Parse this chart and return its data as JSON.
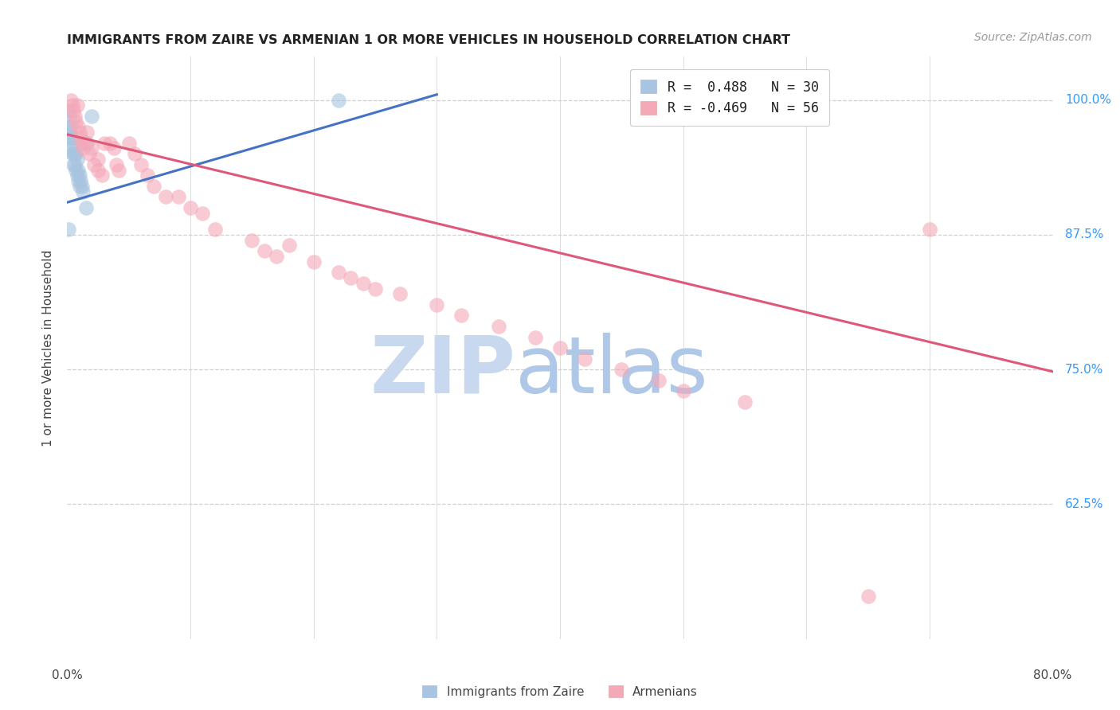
{
  "title": "IMMIGRANTS FROM ZAIRE VS ARMENIAN 1 OR MORE VEHICLES IN HOUSEHOLD CORRELATION CHART",
  "source": "Source: ZipAtlas.com",
  "ylabel": "1 or more Vehicles in Household",
  "ytick_labels": [
    "100.0%",
    "87.5%",
    "75.0%",
    "62.5%"
  ],
  "ytick_values": [
    1.0,
    0.875,
    0.75,
    0.625
  ],
  "legend_zaire_label": "Immigrants from Zaire",
  "legend_armenian_label": "Armenians",
  "legend_r_zaire": "R =  0.488   N = 30",
  "legend_r_armenian": "R = -0.469   N = 56",
  "zaire_color": "#a8c4e0",
  "armenian_color": "#f4a8b8",
  "zaire_line_color": "#4472c4",
  "armenian_line_color": "#e05878",
  "background_color": "#ffffff",
  "grid_color": "#d0d0d0",
  "title_color": "#222222",
  "source_color": "#999999",
  "axis_label_color": "#444444",
  "ytick_color": "#3399ff",
  "xtick_color": "#444444",
  "xmin": 0.0,
  "xmax": 0.8,
  "ymin": 0.5,
  "ymax": 1.04,
  "zaire_x": [
    0.001,
    0.001,
    0.002,
    0.002,
    0.003,
    0.003,
    0.003,
    0.004,
    0.004,
    0.005,
    0.005,
    0.005,
    0.006,
    0.006,
    0.007,
    0.007,
    0.008,
    0.008,
    0.009,
    0.009,
    0.01,
    0.01,
    0.011,
    0.012,
    0.013,
    0.015,
    0.016,
    0.02,
    0.22,
    0.001
  ],
  "zaire_y": [
    0.975,
    0.99,
    0.985,
    0.97,
    0.975,
    0.965,
    0.955,
    0.965,
    0.95,
    0.96,
    0.95,
    0.94,
    0.95,
    0.94,
    0.95,
    0.935,
    0.945,
    0.93,
    0.935,
    0.925,
    0.93,
    0.92,
    0.925,
    0.92,
    0.915,
    0.9,
    0.96,
    0.985,
    1.0,
    0.88
  ],
  "armenian_x": [
    0.003,
    0.004,
    0.005,
    0.006,
    0.007,
    0.008,
    0.009,
    0.01,
    0.011,
    0.012,
    0.013,
    0.015,
    0.016,
    0.018,
    0.02,
    0.022,
    0.025,
    0.025,
    0.028,
    0.03,
    0.035,
    0.038,
    0.04,
    0.042,
    0.05,
    0.055,
    0.06,
    0.065,
    0.07,
    0.08,
    0.09,
    0.1,
    0.11,
    0.12,
    0.15,
    0.16,
    0.17,
    0.18,
    0.2,
    0.22,
    0.23,
    0.24,
    0.25,
    0.27,
    0.3,
    0.32,
    0.35,
    0.38,
    0.4,
    0.42,
    0.45,
    0.48,
    0.5,
    0.55,
    0.65,
    0.7
  ],
  "armenian_y": [
    1.0,
    0.995,
    0.99,
    0.985,
    0.98,
    0.995,
    0.975,
    0.97,
    0.965,
    0.96,
    0.955,
    0.96,
    0.97,
    0.95,
    0.955,
    0.94,
    0.945,
    0.935,
    0.93,
    0.96,
    0.96,
    0.955,
    0.94,
    0.935,
    0.96,
    0.95,
    0.94,
    0.93,
    0.92,
    0.91,
    0.91,
    0.9,
    0.895,
    0.88,
    0.87,
    0.86,
    0.855,
    0.865,
    0.85,
    0.84,
    0.835,
    0.83,
    0.825,
    0.82,
    0.81,
    0.8,
    0.79,
    0.78,
    0.77,
    0.76,
    0.75,
    0.74,
    0.73,
    0.72,
    0.54,
    0.88
  ],
  "zaire_line_x": [
    0.0,
    0.3
  ],
  "zaire_line_y": [
    0.905,
    1.005
  ],
  "armenian_line_x": [
    0.0,
    0.8
  ],
  "armenian_line_y": [
    0.968,
    0.748
  ],
  "xtick_positions": [
    0.0,
    0.1,
    0.2,
    0.3,
    0.4,
    0.5,
    0.6,
    0.7,
    0.8
  ],
  "watermark_zip_color": "#c8d8ee",
  "watermark_atlas_color": "#b0c8e8"
}
